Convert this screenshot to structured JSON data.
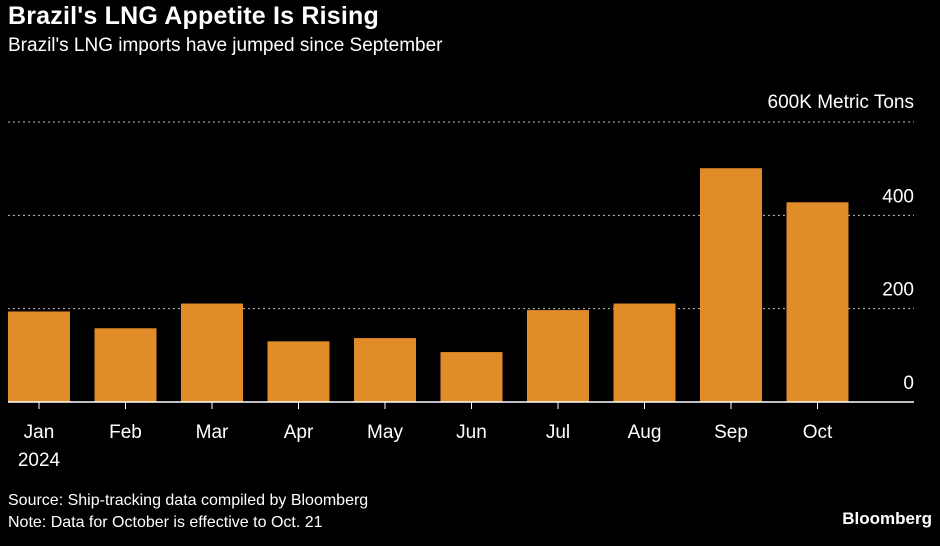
{
  "header": {
    "title": "Brazil's LNG Appetite Is Rising",
    "subtitle": "Brazil's LNG imports have jumped since September"
  },
  "colors": {
    "background": "#000000",
    "bar": "#e08c28",
    "text": "#ffffff",
    "grid": "#bbbbbb"
  },
  "chart_data": {
    "type": "bar",
    "title": "Brazil's LNG Appetite Is Rising",
    "ylabel": "600K Metric Tons",
    "unit_label": "600K Metric Tons",
    "categories": [
      "Jan",
      "Feb",
      "Mar",
      "Apr",
      "May",
      "Jun",
      "Jul",
      "Aug",
      "Sep",
      "Oct"
    ],
    "year_label": "2024",
    "values": [
      194,
      158,
      211,
      130,
      137,
      107,
      197,
      211,
      501,
      428
    ],
    "ylim": [
      0,
      600
    ],
    "yticks": [
      0,
      200,
      400
    ],
    "ytick_labels": [
      "0",
      "200",
      "400"
    ],
    "grid": true,
    "axis_side": "right"
  },
  "footer": {
    "source": "Source: Ship-tracking data compiled by Bloomberg",
    "note": "Note: Data for October is effective to Oct. 21",
    "brand": "Bloomberg"
  }
}
